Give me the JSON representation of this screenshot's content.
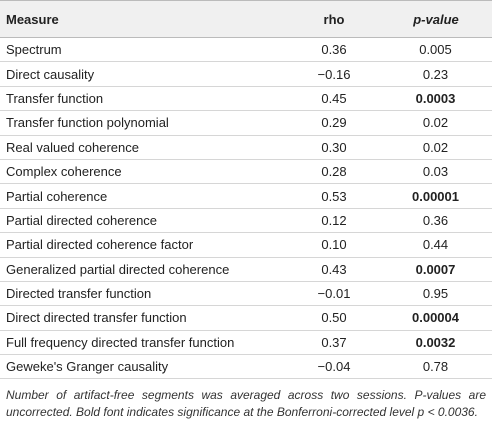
{
  "table": {
    "header": [
      "Measure",
      "rho",
      "p-value"
    ],
    "rows": [
      {
        "measure": "Spectrum",
        "rho": "0.36",
        "p": "0.005",
        "bold": false
      },
      {
        "measure": "Direct causality",
        "rho": "−0.16",
        "p": "0.23",
        "bold": false
      },
      {
        "measure": "Transfer function",
        "rho": "0.45",
        "p": "0.0003",
        "bold": true
      },
      {
        "measure": "Transfer function polynomial",
        "rho": "0.29",
        "p": "0.02",
        "bold": false
      },
      {
        "measure": "Real valued coherence",
        "rho": "0.30",
        "p": "0.02",
        "bold": false
      },
      {
        "measure": "Complex coherence",
        "rho": "0.28",
        "p": "0.03",
        "bold": false
      },
      {
        "measure": "Partial coherence",
        "rho": "0.53",
        "p": "0.00001",
        "bold": true
      },
      {
        "measure": "Partial directed coherence",
        "rho": "0.12",
        "p": "0.36",
        "bold": false
      },
      {
        "measure": "Partial directed coherence factor",
        "rho": "0.10",
        "p": "0.44",
        "bold": false
      },
      {
        "measure": "Generalized partial directed coherence",
        "rho": "0.43",
        "p": "0.0007",
        "bold": true
      },
      {
        "measure": "Directed transfer function",
        "rho": "−0.01",
        "p": "0.95",
        "bold": false
      },
      {
        "measure": "Direct directed transfer function",
        "rho": "0.50",
        "p": "0.00004",
        "bold": true
      },
      {
        "measure": "Full frequency directed transfer function",
        "rho": "0.37",
        "p": "0.0032",
        "bold": true
      },
      {
        "measure": "Geweke's Granger causality",
        "rho": "−0.04",
        "p": "0.78",
        "bold": false
      }
    ],
    "footnote": "Number of artifact-free segments was averaged across two sessions. P-values are uncorrected. Bold font indicates significance at the Bonferroni-corrected level p < 0.0036."
  }
}
